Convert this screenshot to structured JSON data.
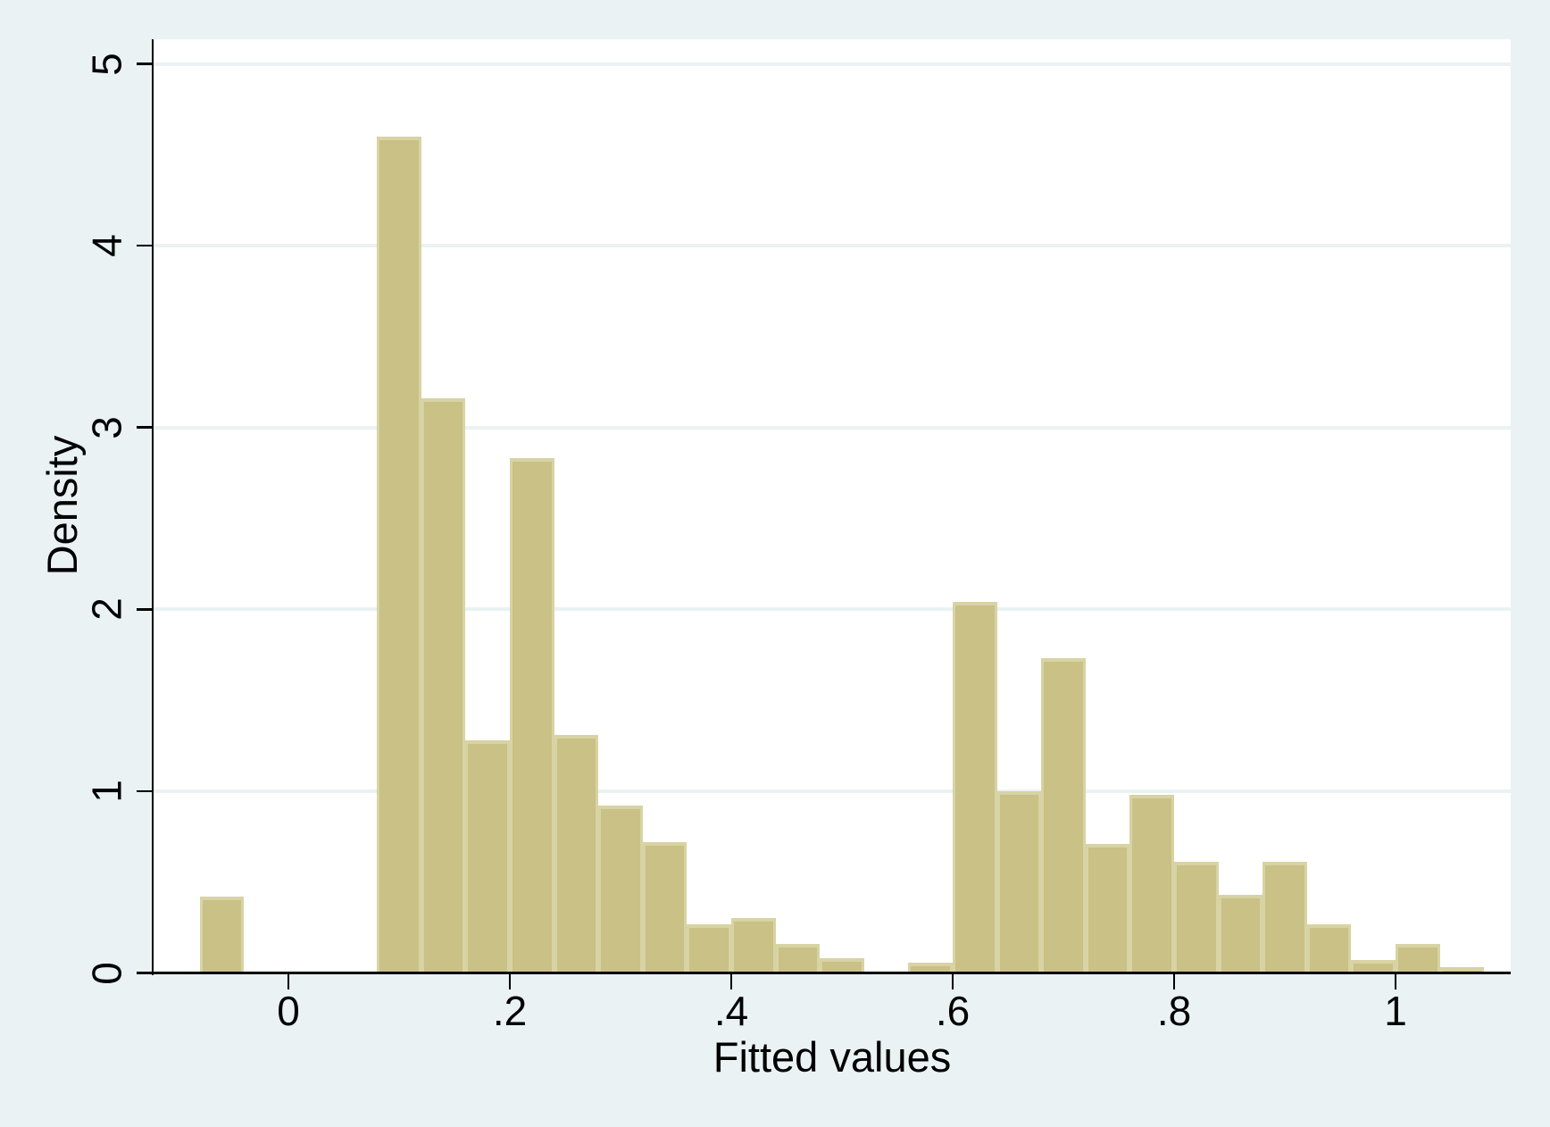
{
  "figure": {
    "background_color": "#eaf2f3",
    "plot_background_color": "#ffffff",
    "grid_color": "#eaf2f3",
    "axis_color": "#000000",
    "text_color": "#000000"
  },
  "chart_data": {
    "type": "bar",
    "subtype": "histogram",
    "title": "",
    "xlabel": "Fitted values",
    "ylabel": "Density",
    "legend": "none",
    "grid": "horizontal",
    "bar_fill_color": "#c9c185",
    "bar_border_color": "#d8d3a4",
    "xlim": [
      -0.122,
      1.104
    ],
    "ylim": [
      0,
      5.13
    ],
    "xticks": [
      {
        "value": 0.0,
        "label": "0"
      },
      {
        "value": 0.2,
        "label": ".2"
      },
      {
        "value": 0.4,
        "label": ".4"
      },
      {
        "value": 0.6,
        "label": ".6"
      },
      {
        "value": 0.8,
        "label": ".8"
      },
      {
        "value": 1.0,
        "label": "1"
      }
    ],
    "yticks": [
      {
        "value": 0,
        "label": "0"
      },
      {
        "value": 1,
        "label": "1"
      },
      {
        "value": 2,
        "label": "2"
      },
      {
        "value": 3,
        "label": "3"
      },
      {
        "value": 4,
        "label": "4"
      },
      {
        "value": 5,
        "label": "5"
      }
    ],
    "bin_width": 0.04,
    "bins": [
      {
        "start": -0.08,
        "density": 0.42
      },
      {
        "start": -0.04,
        "density": 0
      },
      {
        "start": 0.0,
        "density": 0
      },
      {
        "start": 0.04,
        "density": 0
      },
      {
        "start": 0.08,
        "density": 4.6
      },
      {
        "start": 0.12,
        "density": 3.16
      },
      {
        "start": 0.16,
        "density": 1.28
      },
      {
        "start": 0.2,
        "density": 2.83
      },
      {
        "start": 0.24,
        "density": 1.31
      },
      {
        "start": 0.28,
        "density": 0.92
      },
      {
        "start": 0.32,
        "density": 0.72
      },
      {
        "start": 0.36,
        "density": 0.27
      },
      {
        "start": 0.4,
        "density": 0.3
      },
      {
        "start": 0.44,
        "density": 0.16
      },
      {
        "start": 0.48,
        "density": 0.08
      },
      {
        "start": 0.52,
        "density": 0
      },
      {
        "start": 0.56,
        "density": 0.055
      },
      {
        "start": 0.6,
        "density": 2.04
      },
      {
        "start": 0.64,
        "density": 1.0
      },
      {
        "start": 0.68,
        "density": 1.73
      },
      {
        "start": 0.72,
        "density": 0.71
      },
      {
        "start": 0.76,
        "density": 0.98
      },
      {
        "start": 0.8,
        "density": 0.61
      },
      {
        "start": 0.84,
        "density": 0.43
      },
      {
        "start": 0.88,
        "density": 0.61
      },
      {
        "start": 0.92,
        "density": 0.27
      },
      {
        "start": 0.96,
        "density": 0.07
      },
      {
        "start": 1.0,
        "density": 0.16
      },
      {
        "start": 1.04,
        "density": 0.03
      }
    ]
  }
}
